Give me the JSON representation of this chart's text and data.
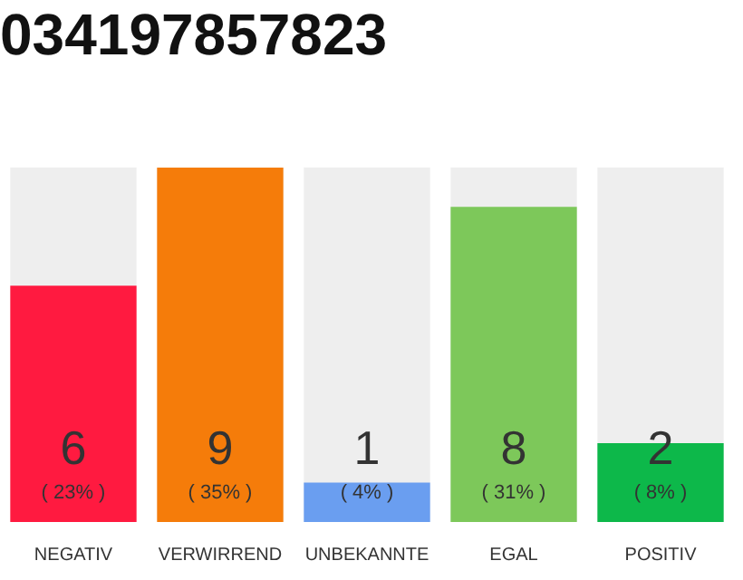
{
  "chart_data": {
    "type": "bar",
    "title": "034197857823",
    "categories": [
      "NEGATIV",
      "VERWIRREND",
      "UNBEKANNTE",
      "EGAL",
      "POSITIV"
    ],
    "values": [
      6,
      9,
      1,
      8,
      2
    ],
    "colors": [
      "#ff1a40",
      "#f57c0a",
      "#6a9ef0",
      "#7dc85a",
      "#0db84a"
    ],
    "value_labels": [
      "6\n( 23% )",
      "9\n( 35% )",
      "1\n( 4% )",
      "8\n( 31% )",
      "2\n( 8% )"
    ],
    "tick_labels": "x",
    "grid": false,
    "legend": false
  }
}
